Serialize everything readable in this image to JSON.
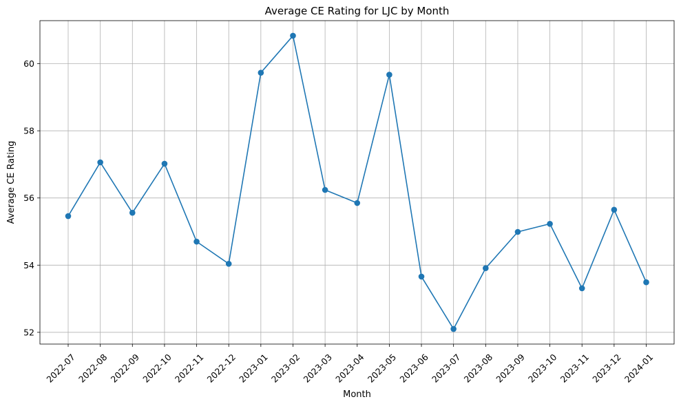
{
  "chart_data": {
    "type": "line",
    "title": "Average CE Rating for LJC by Month",
    "xlabel": "Month",
    "ylabel": "Average CE Rating",
    "categories": [
      "2022-07",
      "2022-08",
      "2022-09",
      "2022-10",
      "2022-11",
      "2022-12",
      "2023-01",
      "2023-02",
      "2023-03",
      "2023-04",
      "2023-05",
      "2023-06",
      "2023-07",
      "2023-08",
      "2023-09",
      "2023-10",
      "2023-11",
      "2023-12",
      "2024-01"
    ],
    "series": [
      {
        "values": [
          55.46,
          57.06,
          55.56,
          57.02,
          54.7,
          54.04,
          59.73,
          60.83,
          56.24,
          55.85,
          59.67,
          53.66,
          52.1,
          53.91,
          54.99,
          55.23,
          53.31,
          55.65,
          53.49
        ],
        "color": "#1f77b4",
        "marker": "circle"
      }
    ],
    "yticks": [
      52,
      54,
      56,
      58,
      60
    ],
    "ylim": [
      51.65,
      61.28
    ],
    "grid": true,
    "x_tick_rotation": 45
  }
}
